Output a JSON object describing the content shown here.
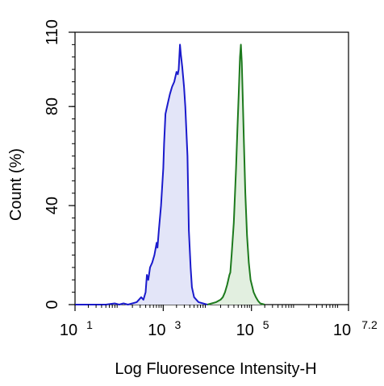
{
  "chart_data": {
    "type": "area",
    "title": "",
    "xlabel": "Log Fluoresence Intensity-H",
    "ylabel": "Count  (%)",
    "xscale": "log10",
    "xlim_log10": [
      1,
      7.2
    ],
    "ylim": [
      0,
      110
    ],
    "grid": false,
    "legend": "none",
    "x_ticks": [
      {
        "log10": 1,
        "base": "10",
        "exp": "1"
      },
      {
        "log10": 3,
        "base": "10",
        "exp": "3"
      },
      {
        "log10": 5,
        "base": "10",
        "exp": "5"
      },
      {
        "log10": 7.2,
        "base": "10",
        "exp": "7.2"
      }
    ],
    "y_ticks": [
      0,
      40,
      80,
      110
    ],
    "series": [
      {
        "color": "#1a1acc",
        "fill": "#e3e5f8",
        "points": [
          [
            1.0,
            0
          ],
          [
            1.7,
            0
          ],
          [
            1.9,
            0.5
          ],
          [
            2.0,
            0
          ],
          [
            2.1,
            0.5
          ],
          [
            2.2,
            0
          ],
          [
            2.3,
            0.5
          ],
          [
            2.4,
            1
          ],
          [
            2.5,
            3
          ],
          [
            2.55,
            2
          ],
          [
            2.6,
            5
          ],
          [
            2.63,
            12
          ],
          [
            2.66,
            10
          ],
          [
            2.7,
            15
          ],
          [
            2.75,
            17
          ],
          [
            2.8,
            20
          ],
          [
            2.85,
            25
          ],
          [
            2.87,
            23
          ],
          [
            2.9,
            30
          ],
          [
            2.95,
            40
          ],
          [
            3.0,
            55
          ],
          [
            3.02,
            65
          ],
          [
            3.05,
            77
          ],
          [
            3.1,
            81
          ],
          [
            3.15,
            85
          ],
          [
            3.2,
            88
          ],
          [
            3.25,
            90
          ],
          [
            3.3,
            94
          ],
          [
            3.33,
            93
          ],
          [
            3.35,
            95
          ],
          [
            3.38,
            105
          ],
          [
            3.4,
            101
          ],
          [
            3.43,
            96
          ],
          [
            3.47,
            88
          ],
          [
            3.5,
            80
          ],
          [
            3.55,
            60
          ],
          [
            3.58,
            30
          ],
          [
            3.62,
            15
          ],
          [
            3.65,
            7
          ],
          [
            3.7,
            3
          ],
          [
            3.8,
            1
          ],
          [
            3.9,
            0.5
          ],
          [
            4.0,
            0
          ]
        ]
      },
      {
        "color": "#1d7a1d",
        "fill": "#e2efe0",
        "points": [
          [
            4.0,
            0
          ],
          [
            4.1,
            0.5
          ],
          [
            4.2,
            1
          ],
          [
            4.3,
            2
          ],
          [
            4.35,
            3
          ],
          [
            4.4,
            5
          ],
          [
            4.45,
            8
          ],
          [
            4.5,
            12
          ],
          [
            4.52,
            13
          ],
          [
            4.55,
            20
          ],
          [
            4.6,
            33
          ],
          [
            4.65,
            55
          ],
          [
            4.68,
            70
          ],
          [
            4.71,
            85
          ],
          [
            4.74,
            100
          ],
          [
            4.76,
            105
          ],
          [
            4.78,
            98
          ],
          [
            4.8,
            85
          ],
          [
            4.83,
            65
          ],
          [
            4.86,
            45
          ],
          [
            4.9,
            28
          ],
          [
            4.94,
            17
          ],
          [
            4.98,
            10
          ],
          [
            5.05,
            5
          ],
          [
            5.1,
            3
          ],
          [
            5.15,
            1.5
          ],
          [
            5.2,
            0.5
          ],
          [
            5.3,
            0
          ]
        ]
      }
    ]
  }
}
